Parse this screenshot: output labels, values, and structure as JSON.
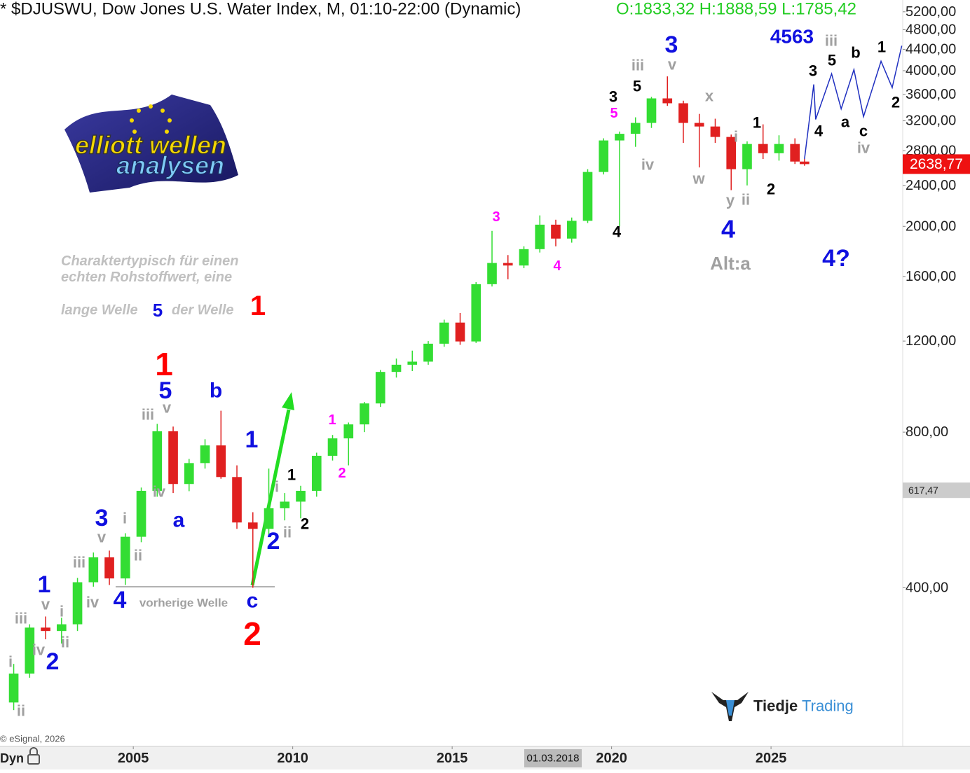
{
  "chart_data": {
    "type": "candlestick",
    "title": "* $DJUSWU, Dow Jones U.S. Water Index, M, 01:10-22:00 (Dynamic)",
    "ohlc": "O:1833,32 H:1888,59 L:1785,42",
    "log_scale": true,
    "grid": false,
    "up_color": "#33dd33",
    "down_color": "#e02020",
    "x": [
      2001.25,
      2001.75,
      2002.25,
      2002.75,
      2003.25,
      2003.75,
      2004.25,
      2004.75,
      2005.25,
      2005.75,
      2006.25,
      2006.75,
      2007.25,
      2007.75,
      2008.25,
      2008.75,
      2009.25,
      2009.75,
      2010.25,
      2010.75,
      2011.25,
      2011.75,
      2012.25,
      2012.75,
      2013.25,
      2013.75,
      2014.25,
      2014.75,
      2015.25,
      2015.75,
      2016.25,
      2016.75,
      2017.25,
      2017.75,
      2018.25,
      2018.75,
      2019.25,
      2019.75,
      2020.25,
      2020.75,
      2021.25,
      2021.75,
      2022.25,
      2022.75,
      2023.25,
      2023.75,
      2024.25,
      2024.75,
      2025.25,
      2025.75,
      2026.05
    ],
    "open": [
      240,
      273,
      335,
      330,
      340,
      410,
      458,
      417,
      502,
      616,
      803,
      635,
      697,
      754,
      655,
      535,
      520,
      570,
      587,
      616,
      720,
      778,
      828,
      909,
      1046,
      1080,
      1095,
      1186,
      1303,
      1198,
      1546,
      1699,
      1680,
      1807,
      2015,
      1894,
      2050,
      2548,
      2932,
      3020,
      3170,
      3536,
      3460,
      3170,
      3120,
      2978,
      2580,
      2886,
      2770,
      2886,
      2669
    ],
    "high": [
      285,
      340,
      352,
      350,
      418,
      468,
      472,
      510,
      625,
      830,
      820,
      710,
      775,
      880,
      690,
      560,
      680,
      610,
      630,
      730,
      790,
      835,
      915,
      1055,
      1110,
      1150,
      1200,
      1320,
      1360,
      1560,
      1960,
      1760,
      1830,
      2100,
      2060,
      2080,
      2580,
      2960,
      3050,
      3250,
      3560,
      3900,
      3500,
      3300,
      3230,
      3010,
      2920,
      3150,
      3000,
      2960,
      2700
    ],
    "low": [
      232,
      268,
      318,
      312,
      330,
      402,
      405,
      405,
      490,
      600,
      610,
      615,
      680,
      650,
      520,
      400,
      505,
      540,
      545,
      600,
      705,
      690,
      800,
      895,
      1020,
      1050,
      1080,
      1170,
      1180,
      1190,
      1530,
      1580,
      1660,
      1780,
      1830,
      1860,
      2030,
      2520,
      2000,
      2850,
      3100,
      3420,
      2900,
      2600,
      2900,
      2350,
      2400,
      2700,
      2680,
      2640,
      2620
    ],
    "close": [
      273,
      335,
      330,
      340,
      410,
      458,
      417,
      502,
      616,
      803,
      635,
      697,
      754,
      655,
      535,
      520,
      570,
      587,
      616,
      720,
      778,
      828,
      909,
      1046,
      1080,
      1095,
      1186,
      1303,
      1198,
      1546,
      1699,
      1680,
      1807,
      2015,
      1894,
      2050,
      2548,
      2932,
      3020,
      3170,
      3536,
      3460,
      3170,
      3120,
      2978,
      2580,
      2886,
      2770,
      2886,
      2669,
      2638.77
    ],
    "xlim": [
      2000.82,
      2029.13
    ],
    "xticks": [
      2005,
      2010,
      2015,
      2020,
      2025
    ],
    "ylim": [
      198,
      5480
    ],
    "yticks": [
      {
        "value": 400,
        "label": "400,00"
      },
      {
        "value": 800,
        "label": "800,00"
      },
      {
        "value": 1200,
        "label": "1200,00"
      },
      {
        "value": 1600,
        "label": "1600,00"
      },
      {
        "value": 2000,
        "label": "2000,00"
      },
      {
        "value": 2400,
        "label": "2400,00"
      },
      {
        "value": 2800,
        "label": "2800,00"
      },
      {
        "value": 3200,
        "label": "3200,00"
      },
      {
        "value": 3600,
        "label": "3600,00"
      },
      {
        "value": 4000,
        "label": "4000,00"
      },
      {
        "value": 4400,
        "label": "4400,00"
      },
      {
        "value": 4800,
        "label": "4800,00"
      },
      {
        "value": 5200,
        "label": "5200,00"
      }
    ],
    "last_price": {
      "value": 2638.77,
      "label": "2638,77"
    },
    "marker_price": {
      "value": 617.47,
      "label": "617,47"
    },
    "cursor_date": "01.03.2018",
    "projection": {
      "color": "#2030c0",
      "x": [
        2026.05,
        2026.34,
        2026.4,
        2026.9,
        2027.2,
        2027.6,
        2027.9,
        2028.45,
        2028.8,
        2029.1
      ],
      "values": [
        2700,
        3763,
        3220,
        3945,
        3375,
        4020,
        3260,
        4172,
        3710,
        4470
      ]
    },
    "annotations": [
      {
        "text": "ii",
        "color": "#a0a0a0"
      },
      {
        "text": "i",
        "color": "#a0a0a0"
      },
      {
        "text": "iii",
        "color": "#a0a0a0"
      },
      {
        "text": "iv",
        "color": "#a0a0a0"
      },
      {
        "text": "2",
        "color": "#1010e0"
      },
      {
        "text": "1",
        "color": "#1010e0"
      },
      {
        "text": "v",
        "color": "#a0a0a0"
      },
      {
        "text": "i",
        "color": "#a0a0a0"
      },
      {
        "text": "ii",
        "color": "#a0a0a0"
      },
      {
        "text": "iii",
        "color": "#a0a0a0"
      },
      {
        "text": "iv",
        "color": "#a0a0a0"
      },
      {
        "text": "4",
        "color": "#1010e0"
      },
      {
        "text": "3",
        "color": "#1010e0"
      },
      {
        "text": "v",
        "color": "#a0a0a0"
      },
      {
        "text": "i",
        "color": "#a0a0a0"
      },
      {
        "text": "ii",
        "color": "#a0a0a0"
      },
      {
        "text": "iii",
        "color": "#a0a0a0"
      },
      {
        "text": "v",
        "color": "#a0a0a0"
      },
      {
        "text": "5",
        "color": "#1010e0"
      },
      {
        "text": "1",
        "color": "#ff0000"
      },
      {
        "text": "iv",
        "color": "#a0a0a0"
      },
      {
        "text": "a",
        "color": "#1010e0"
      },
      {
        "text": "b",
        "color": "#1010e0"
      },
      {
        "text": "1",
        "color": "#1010e0"
      },
      {
        "text": "2",
        "color": "#1010e0"
      },
      {
        "text": "c",
        "color": "#1010e0"
      },
      {
        "text": "2",
        "color": "#ff0000"
      },
      {
        "text": "i",
        "color": "#a0a0a0"
      },
      {
        "text": "ii",
        "color": "#a0a0a0"
      },
      {
        "text": "1",
        "color": "#000000"
      },
      {
        "text": "2",
        "color": "#000000"
      },
      {
        "text": "1",
        "color": "#ff00ff"
      },
      {
        "text": "2",
        "color": "#ff00ff"
      },
      {
        "text": "3",
        "color": "#ff00ff"
      },
      {
        "text": "4",
        "color": "#ff00ff"
      },
      {
        "text": "4",
        "color": "#000000"
      },
      {
        "text": "3",
        "color": "#000000"
      },
      {
        "text": "5",
        "color": "#ff00ff"
      },
      {
        "text": "5",
        "color": "#000000"
      },
      {
        "text": "iii",
        "color": "#a0a0a0"
      },
      {
        "text": "iv",
        "color": "#a0a0a0"
      },
      {
        "text": "3",
        "color": "#1010e0"
      },
      {
        "text": "v",
        "color": "#a0a0a0"
      },
      {
        "text": "x",
        "color": "#a0a0a0"
      },
      {
        "text": "w",
        "color": "#a0a0a0"
      },
      {
        "text": "i",
        "color": "#a0a0a0"
      },
      {
        "text": "1",
        "color": "#000000"
      },
      {
        "text": "y",
        "color": "#a0a0a0"
      },
      {
        "text": "ii",
        "color": "#a0a0a0"
      },
      {
        "text": "2",
        "color": "#000000"
      },
      {
        "text": "4",
        "color": "#1010e0"
      },
      {
        "text": "Alt:a",
        "color": "#a0a0a0"
      },
      {
        "text": "4563",
        "color": "#1010e0"
      },
      {
        "text": "iii",
        "color": "#a0a0a0"
      },
      {
        "text": "3",
        "color": "#000000"
      },
      {
        "text": "5",
        "color": "#000000"
      },
      {
        "text": "b",
        "color": "#000000"
      },
      {
        "text": "1",
        "color": "#000000"
      },
      {
        "text": "2",
        "color": "#000000"
      },
      {
        "text": "4",
        "color": "#000000"
      },
      {
        "text": "a",
        "color": "#000000"
      },
      {
        "text": "c",
        "color": "#000000"
      },
      {
        "text": "iv",
        "color": "#a0a0a0"
      },
      {
        "text": "4?",
        "color": "#1010e0"
      },
      {
        "text": "vorherige Welle",
        "color": "#a0a0a0"
      }
    ]
  },
  "note": {
    "line1": "Charaktertypisch für einen",
    "line2": "echten Rohstoffwert, eine",
    "part1": "lange Welle",
    "wave5": "5",
    "part2": "der Welle",
    "wave1": "1"
  },
  "logo": {
    "line1": "elliott wellen",
    "line2": "analysen"
  },
  "branding": {
    "part1": "Tiedje",
    "part2": "Trading"
  },
  "copyright": "© eSignal, 2026",
  "mode": "Dyn"
}
